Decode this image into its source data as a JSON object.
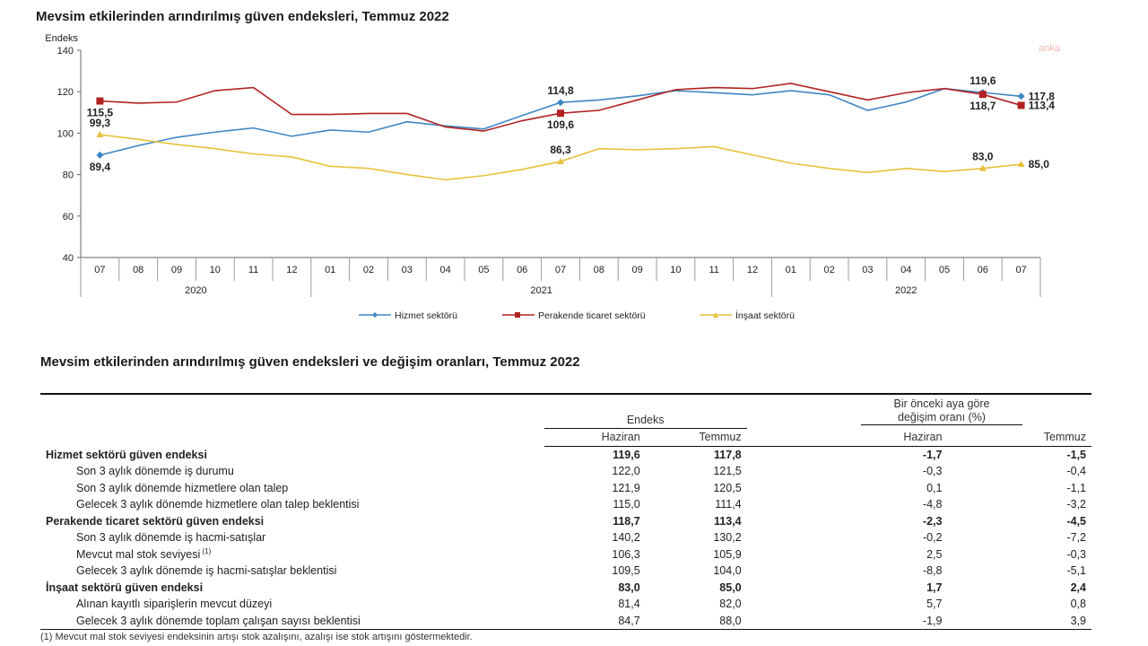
{
  "watermark": "anka",
  "chart_data": {
    "type": "line",
    "title": "Mevsim etkilerinden arındırılmış güven endeksleri, Temmuz 2022",
    "ylabel": "Endeks",
    "ylim": [
      40,
      140
    ],
    "yticks": [
      "140",
      "120",
      "100",
      "80",
      "60",
      "40"
    ],
    "x": [
      "07",
      "08",
      "09",
      "10",
      "11",
      "12",
      "01",
      "02",
      "03",
      "04",
      "05",
      "06",
      "07",
      "08",
      "09",
      "10",
      "11",
      "12",
      "01",
      "02",
      "03",
      "04",
      "05",
      "06",
      "07"
    ],
    "years": [
      "2020",
      "2021",
      "2022"
    ],
    "series": [
      {
        "name": "Hizmet sektörü",
        "color": "#3f86c4",
        "values": [
          89.4,
          94,
          98,
          100.5,
          102.5,
          98.5,
          101.5,
          100.5,
          105.5,
          103.5,
          102,
          108.5,
          114.8,
          116,
          118,
          120.5,
          119.5,
          118.5,
          120.5,
          118.5,
          111,
          115,
          121.5,
          119.6,
          117.8
        ]
      },
      {
        "name": "Perakende ticaret sektörü",
        "color": "#b22222",
        "values": [
          115.5,
          114.5,
          115,
          120.5,
          122,
          109,
          109,
          109.5,
          109.5,
          103,
          101,
          106,
          109.6,
          111,
          116,
          121,
          122,
          121.5,
          124,
          120,
          116,
          119.5,
          121.5,
          118.7,
          113.4
        ]
      },
      {
        "name": "İnşaat sektörü",
        "color": "#e8c13a",
        "values": [
          99.3,
          97,
          94.5,
          92.5,
          90,
          88.5,
          84,
          83,
          80,
          77.5,
          79.5,
          82.5,
          86.3,
          92.5,
          92,
          92.5,
          93.5,
          89.5,
          85.5,
          83,
          81,
          83,
          81.5,
          83.0,
          85.0
        ]
      }
    ],
    "annotations": [
      {
        "text": "115,5",
        "series": 1,
        "i": 0,
        "pos": "below"
      },
      {
        "text": "99,3",
        "series": 2,
        "i": 0,
        "pos": "above"
      },
      {
        "text": "89,4",
        "series": 0,
        "i": 0,
        "pos": "below"
      },
      {
        "text": "114,8",
        "series": 0,
        "i": 12,
        "pos": "above"
      },
      {
        "text": "109,6",
        "series": 1,
        "i": 12,
        "pos": "below"
      },
      {
        "text": "86,3",
        "series": 2,
        "i": 12,
        "pos": "above"
      },
      {
        "text": "119,6",
        "series": 0,
        "i": 23,
        "pos": "above"
      },
      {
        "text": "118,7",
        "series": 1,
        "i": 23,
        "pos": "below"
      },
      {
        "text": "83,0",
        "series": 2,
        "i": 23,
        "pos": "above"
      },
      {
        "text": "117,8",
        "series": 0,
        "i": 24,
        "pos": "right"
      },
      {
        "text": "113,4",
        "series": 1,
        "i": 24,
        "pos": "right"
      },
      {
        "text": "85,0",
        "series": 2,
        "i": 24,
        "pos": "right"
      }
    ],
    "legend_position": "bottom",
    "grid": false
  },
  "table": {
    "title": "Mevsim etkilerinden arındırılmış güven endeksleri ve değişim oranları, Temmuz 2022",
    "group_endeks": "Endeks",
    "group_change": "Bir önceki aya göre\ndeğişim oranı (%)",
    "col_haziran": "Haziran",
    "col_temmuz": "Temmuz",
    "rows": [
      {
        "label": "Hizmet sektörü güven endeksi",
        "bold": true,
        "v": [
          "119,6",
          "117,8",
          "-1,7",
          "-1,5"
        ]
      },
      {
        "label": "Son 3 aylık dönemde iş durumu",
        "bold": false,
        "v": [
          "122,0",
          "121,5",
          "-0,3",
          "-0,4"
        ]
      },
      {
        "label": "Son 3 aylık dönemde hizmetlere olan talep",
        "bold": false,
        "v": [
          "121,9",
          "120,5",
          "0,1",
          "-1,1"
        ]
      },
      {
        "label": "Gelecek 3 aylık dönemde hizmetlere olan talep beklentisi",
        "bold": false,
        "v": [
          "115,0",
          "111,4",
          "-4,8",
          "-3,2"
        ]
      },
      {
        "label": "Perakende ticaret sektörü güven endeksi",
        "bold": true,
        "v": [
          "118,7",
          "113,4",
          "-2,3",
          "-4,5"
        ]
      },
      {
        "label": "Son 3 aylık dönemde iş hacmi-satışlar",
        "bold": false,
        "v": [
          "140,2",
          "130,2",
          "-0,2",
          "-7,2"
        ]
      },
      {
        "label": "Mevcut mal stok seviyesi",
        "sup": "(1)",
        "bold": false,
        "v": [
          "106,3",
          "105,9",
          "2,5",
          "-0,3"
        ]
      },
      {
        "label": "Gelecek 3 aylık dönemde iş hacmi-satışlar beklentisi",
        "bold": false,
        "v": [
          "109,5",
          "104,0",
          "-8,8",
          "-5,1"
        ]
      },
      {
        "label": "İnşaat sektörü güven endeksi",
        "bold": true,
        "v": [
          "83,0",
          "85,0",
          "1,7",
          "2,4"
        ]
      },
      {
        "label": "Alınan kayıtlı siparişlerin mevcut düzeyi",
        "bold": false,
        "v": [
          "81,4",
          "82,0",
          "5,7",
          "0,8"
        ]
      },
      {
        "label": "Gelecek 3 aylık dönemde toplam çalışan sayısı beklentisi",
        "bold": false,
        "v": [
          "84,7",
          "88,0",
          "-1,9",
          "3,9"
        ]
      }
    ],
    "footnote": "(1) Mevcut mal stok seviyesi endeksinin artışı stok azalışını, azalışı ise stok artışını göstermektedir."
  }
}
